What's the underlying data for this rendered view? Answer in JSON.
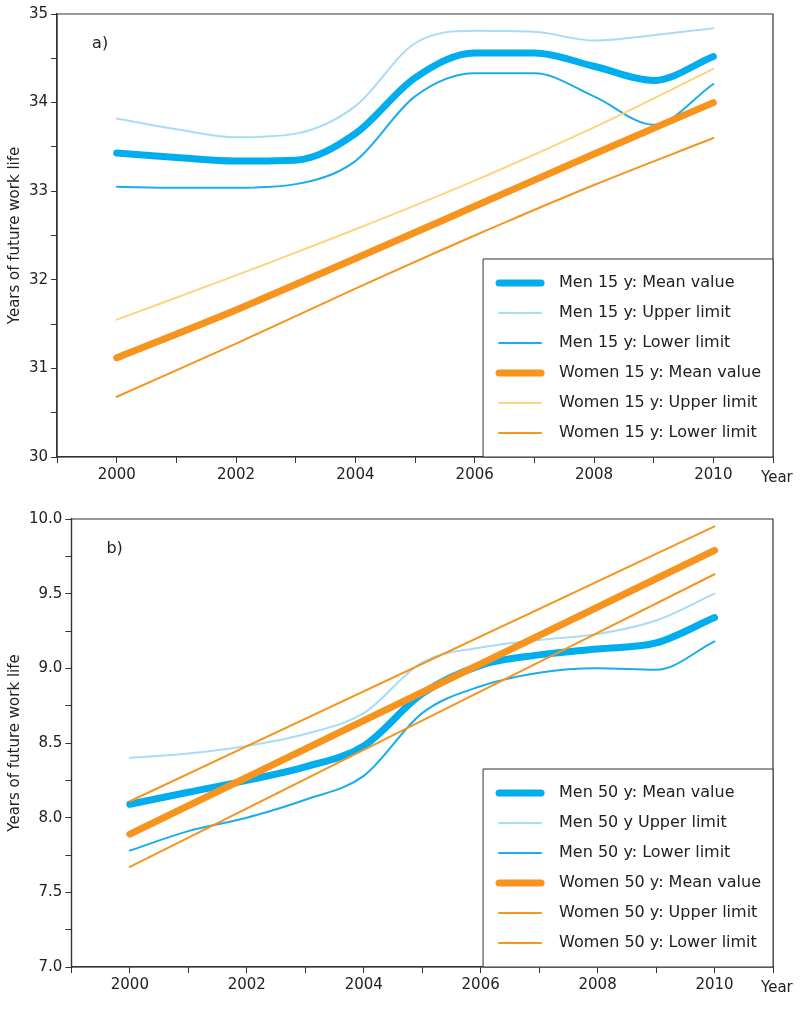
{
  "chart_data": [
    {
      "type": "line",
      "ylabel": "Years of future work life",
      "xlabel": "Year",
      "annotations": [
        "a)"
      ],
      "x": [
        2000,
        2001,
        2002,
        2003,
        2004,
        2005,
        2006,
        2007,
        2008,
        2009,
        2010
      ],
      "xlim": [
        1999,
        2011
      ],
      "xticks": [
        {
          "value": 1999,
          "label": null
        },
        2000,
        {
          "value": 2001,
          "label": null
        },
        2002,
        {
          "value": 2003,
          "label": null
        },
        2004,
        {
          "value": 2005,
          "label": null
        },
        2006,
        {
          "value": 2007,
          "label": null
        },
        2008,
        {
          "value": 2009,
          "label": null
        },
        2010,
        {
          "value": 2011,
          "label": null
        }
      ],
      "ylim": [
        30,
        35
      ],
      "yticks": [
        30,
        {
          "value": 30.5,
          "label": null
        },
        31,
        {
          "value": 31.5,
          "label": null
        },
        32,
        {
          "value": 32.5,
          "label": null
        },
        33,
        {
          "value": 33.5,
          "label": null
        },
        34,
        {
          "value": 34.5,
          "label": null
        },
        35
      ],
      "grid": false,
      "legend": "bottom right",
      "marker": "none",
      "line_style": "solid",
      "series": [
        {
          "name": "Men 15 y: Mean value",
          "color": "#00aeef",
          "values": [
            33.43,
            33.38,
            33.34,
            33.35,
            33.65,
            34.28,
            34.56,
            34.56,
            34.41,
            34.25,
            34.52
          ]
        },
        {
          "name": "Men 15 y: Upper limit",
          "color": "#a6dcf5",
          "values": [
            33.82,
            33.7,
            33.61,
            33.65,
            33.96,
            34.67,
            34.81,
            34.8,
            34.7,
            34.76,
            34.84
          ]
        },
        {
          "name": "Men 15 y: Lower limit",
          "color": "#1aaee8",
          "values": [
            33.05,
            33.04,
            33.04,
            33.08,
            33.34,
            34.07,
            34.33,
            34.33,
            34.07,
            33.75,
            34.21
          ]
        },
        {
          "name": "Women 15 y: Mean value",
          "color": "#f7941d",
          "values": [
            31.12,
            null,
            31.66,
            null,
            32.24,
            null,
            32.83,
            null,
            33.42,
            null,
            34.0
          ]
        },
        {
          "name": "Women 15 y: Upper limit",
          "color": "#fdd57e",
          "values": [
            31.55,
            null,
            32.05,
            null,
            32.57,
            null,
            33.12,
            null,
            33.72,
            null,
            34.38
          ]
        },
        {
          "name": "Women 15 y: Lower limit",
          "color": "#f7941d",
          "values": [
            30.68,
            null,
            31.28,
            null,
            31.9,
            null,
            32.5,
            null,
            33.07,
            null,
            33.6
          ]
        }
      ]
    },
    {
      "type": "line",
      "ylabel": "Years of future work life",
      "xlabel": "Year",
      "annotations": [
        "b)"
      ],
      "x": [
        2000,
        2001,
        2002,
        2003,
        2004,
        2005,
        2006,
        2007,
        2008,
        2009,
        2010
      ],
      "xlim": [
        1999,
        2011
      ],
      "xticks": [
        {
          "value": 1999,
          "label": null
        },
        2000,
        {
          "value": 2001,
          "label": null
        },
        2002,
        {
          "value": 2003,
          "label": null
        },
        2004,
        {
          "value": 2005,
          "label": null
        },
        2006,
        {
          "value": 2007,
          "label": null
        },
        2008,
        {
          "value": 2009,
          "label": null
        },
        2010,
        {
          "value": 2011,
          "label": null
        }
      ],
      "ylim": [
        7,
        10
      ],
      "yticks": [
        {
          "value": 7,
          "label": "7.0"
        },
        {
          "value": 7.25,
          "label": null
        },
        {
          "value": 7.5,
          "label": "7.5"
        },
        {
          "value": 7.75,
          "label": null
        },
        {
          "value": 8,
          "label": "8.0"
        },
        {
          "value": 8.25,
          "label": null
        },
        {
          "value": 8.5,
          "label": "8.5"
        },
        {
          "value": 8.75,
          "label": null
        },
        {
          "value": 9,
          "label": "9.0"
        },
        {
          "value": 9.25,
          "label": null
        },
        {
          "value": 9.5,
          "label": "9.5"
        },
        {
          "value": 9.75,
          "label": null
        },
        {
          "value": 10,
          "label": "10.0"
        }
      ],
      "grid": false,
      "legend": "bottom right",
      "marker": "none",
      "line_style": "solid",
      "series": [
        {
          "name": "Men 50 y: Mean value",
          "color": "#00aeef",
          "values": [
            8.09,
            8.17,
            8.25,
            8.34,
            8.48,
            8.83,
            9.02,
            9.09,
            9.13,
            9.17,
            9.34
          ]
        },
        {
          "name": "Men 50 y Upper limit",
          "color": "#a6dcf5",
          "values": [
            8.4,
            8.43,
            8.48,
            8.56,
            8.7,
            9.04,
            9.14,
            9.19,
            9.23,
            9.32,
            9.5
          ]
        },
        {
          "name": "Men 50 y: Lower limit",
          "color": "#1aaee8",
          "values": [
            7.78,
            7.91,
            8.0,
            8.12,
            8.28,
            8.7,
            8.88,
            8.97,
            9.0,
            8.99,
            9.18
          ]
        },
        {
          "name": "Women 50 y: Mean value",
          "color": "#f7941d",
          "values": [
            7.89,
            null,
            null,
            null,
            null,
            null,
            null,
            null,
            null,
            null,
            9.79
          ]
        },
        {
          "name": "Women 50 y: Upper limit",
          "color": "#f7941d",
          "values": [
            8.11,
            null,
            null,
            null,
            null,
            null,
            null,
            null,
            null,
            null,
            9.95
          ]
        },
        {
          "name": "Women 50 y: Lower limit",
          "color": "#f7941d",
          "values": [
            7.67,
            null,
            null,
            null,
            null,
            null,
            null,
            null,
            null,
            null,
            9.63
          ]
        }
      ]
    }
  ]
}
